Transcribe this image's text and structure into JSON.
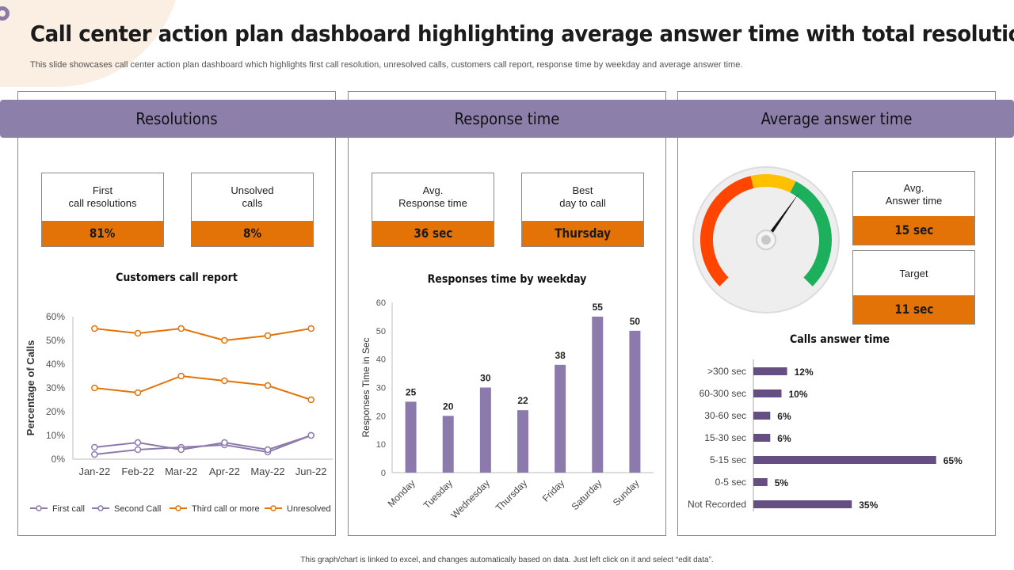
{
  "title": "Call center action plan dashboard highlighting average answer time with total resolutions",
  "subtitle": "This slide showcases call center action plan dashboard which highlights first call resolution, unresolved calls, customers call report, response time by weekday and average answer time.",
  "footer": "This graph/chart is linked to excel, and changes automatically based on data. Just left click on it and select “edit data”.",
  "colors": {
    "accent": "#8c80ab",
    "highlight": "#e37207",
    "bar": "#8c7aad",
    "bar_dark": "#654f82"
  },
  "panels": {
    "resolutions": {
      "header": "Resolutions",
      "kpis": [
        {
          "label_line1": "First",
          "label_line2": "call resolutions",
          "value": "81%"
        },
        {
          "label_line1": "Unsolved",
          "label_line2": "calls",
          "value": "8%"
        }
      ]
    },
    "response": {
      "header": "Response time",
      "kpis": [
        {
          "label_line1": "Avg.",
          "label_line2": "Response  time",
          "value": "36 sec"
        },
        {
          "label_line1": "Best",
          "label_line2": "day to call",
          "value": "Thursday"
        }
      ]
    },
    "answer": {
      "header": "Average answer time",
      "kpis": [
        {
          "label_line1": "Avg.",
          "label_line2": "Answer time",
          "value": "15 sec"
        },
        {
          "label_line1": "Target",
          "label_line2": "",
          "value": "11 sec"
        }
      ]
    }
  },
  "chart_data": [
    {
      "type": "line",
      "title": "Customers  call report",
      "xlabel": "",
      "ylabel": "Percentage of Calls",
      "categories": [
        "Jan-22",
        "Feb-22",
        "Mar-22",
        "Apr-22",
        "May-22",
        "Jun-22"
      ],
      "yticks": [
        "0%",
        "10%",
        "20%",
        "30%",
        "40%",
        "50%",
        "60%"
      ],
      "ylim": [
        0,
        60
      ],
      "legend_position": "bottom",
      "series": [
        {
          "name": "First call",
          "color": "#8c7aad",
          "values": [
            2,
            4,
            5,
            6,
            3,
            10
          ]
        },
        {
          "name": "Second Call",
          "color": "#8c7aad",
          "values": [
            5,
            7,
            4,
            7,
            4,
            10
          ]
        },
        {
          "name": "Third call or more",
          "color": "#e37207",
          "values": [
            30,
            28,
            35,
            33,
            31,
            25
          ]
        },
        {
          "name": "Unresolved",
          "color": "#e37207",
          "values": [
            55,
            53,
            55,
            50,
            52,
            55
          ]
        }
      ]
    },
    {
      "type": "bar",
      "title": "Responses  time  by weekday",
      "xlabel": "",
      "ylabel": "Responses Time in Sec",
      "categories": [
        "Monday",
        "Tuesday",
        "Wednesday",
        "Thursday",
        "Friday",
        "Saturday",
        "Sunday"
      ],
      "values": [
        25,
        20,
        30,
        22,
        38,
        55,
        50
      ],
      "yticks": [
        "0",
        "10",
        "20",
        "30",
        "40",
        "50",
        "60"
      ],
      "ylim": [
        0,
        60
      ]
    },
    {
      "type": "bar",
      "orientation": "horizontal",
      "title": "Calls answer time",
      "categories": [
        ">300 sec",
        "60-300 sec",
        "30-60 sec",
        "15-30 sec",
        "5-15 sec",
        "0-5 sec",
        "Not Recorded"
      ],
      "values": [
        12,
        10,
        6,
        6,
        65,
        5,
        35
      ],
      "value_labels": [
        "12%",
        "10%",
        "6%",
        "6%",
        "65%",
        "5%",
        "35%"
      ],
      "unit": "%"
    }
  ],
  "gauge": {
    "segments": [
      {
        "color": "#ff4500",
        "from": 0,
        "to": 0.45
      },
      {
        "color": "#ffc000",
        "from": 0.45,
        "to": 0.6
      },
      {
        "color": "#1db05c",
        "from": 0.6,
        "to": 1.0
      }
    ],
    "needle_fraction": 0.63
  }
}
